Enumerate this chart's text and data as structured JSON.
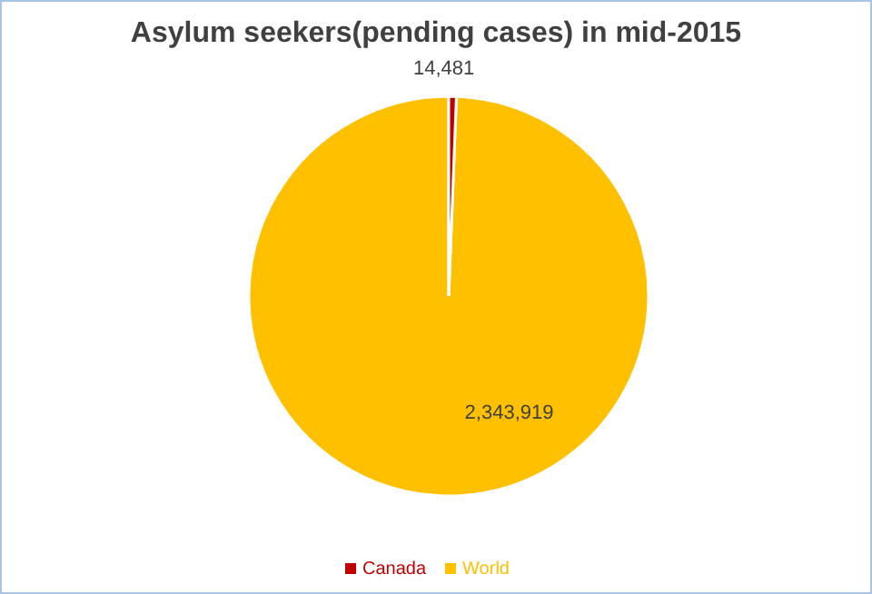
{
  "chart_data": {
    "type": "pie",
    "title": "Asylum seekers(pending cases) in mid-2015",
    "categories": [
      "World",
      "Canada"
    ],
    "values": [
      2343919,
      14481
    ],
    "colors": [
      "#ffc000",
      "#c00000"
    ],
    "value_labels": [
      "2,343,919",
      "14,481"
    ],
    "legend": "bottom"
  }
}
